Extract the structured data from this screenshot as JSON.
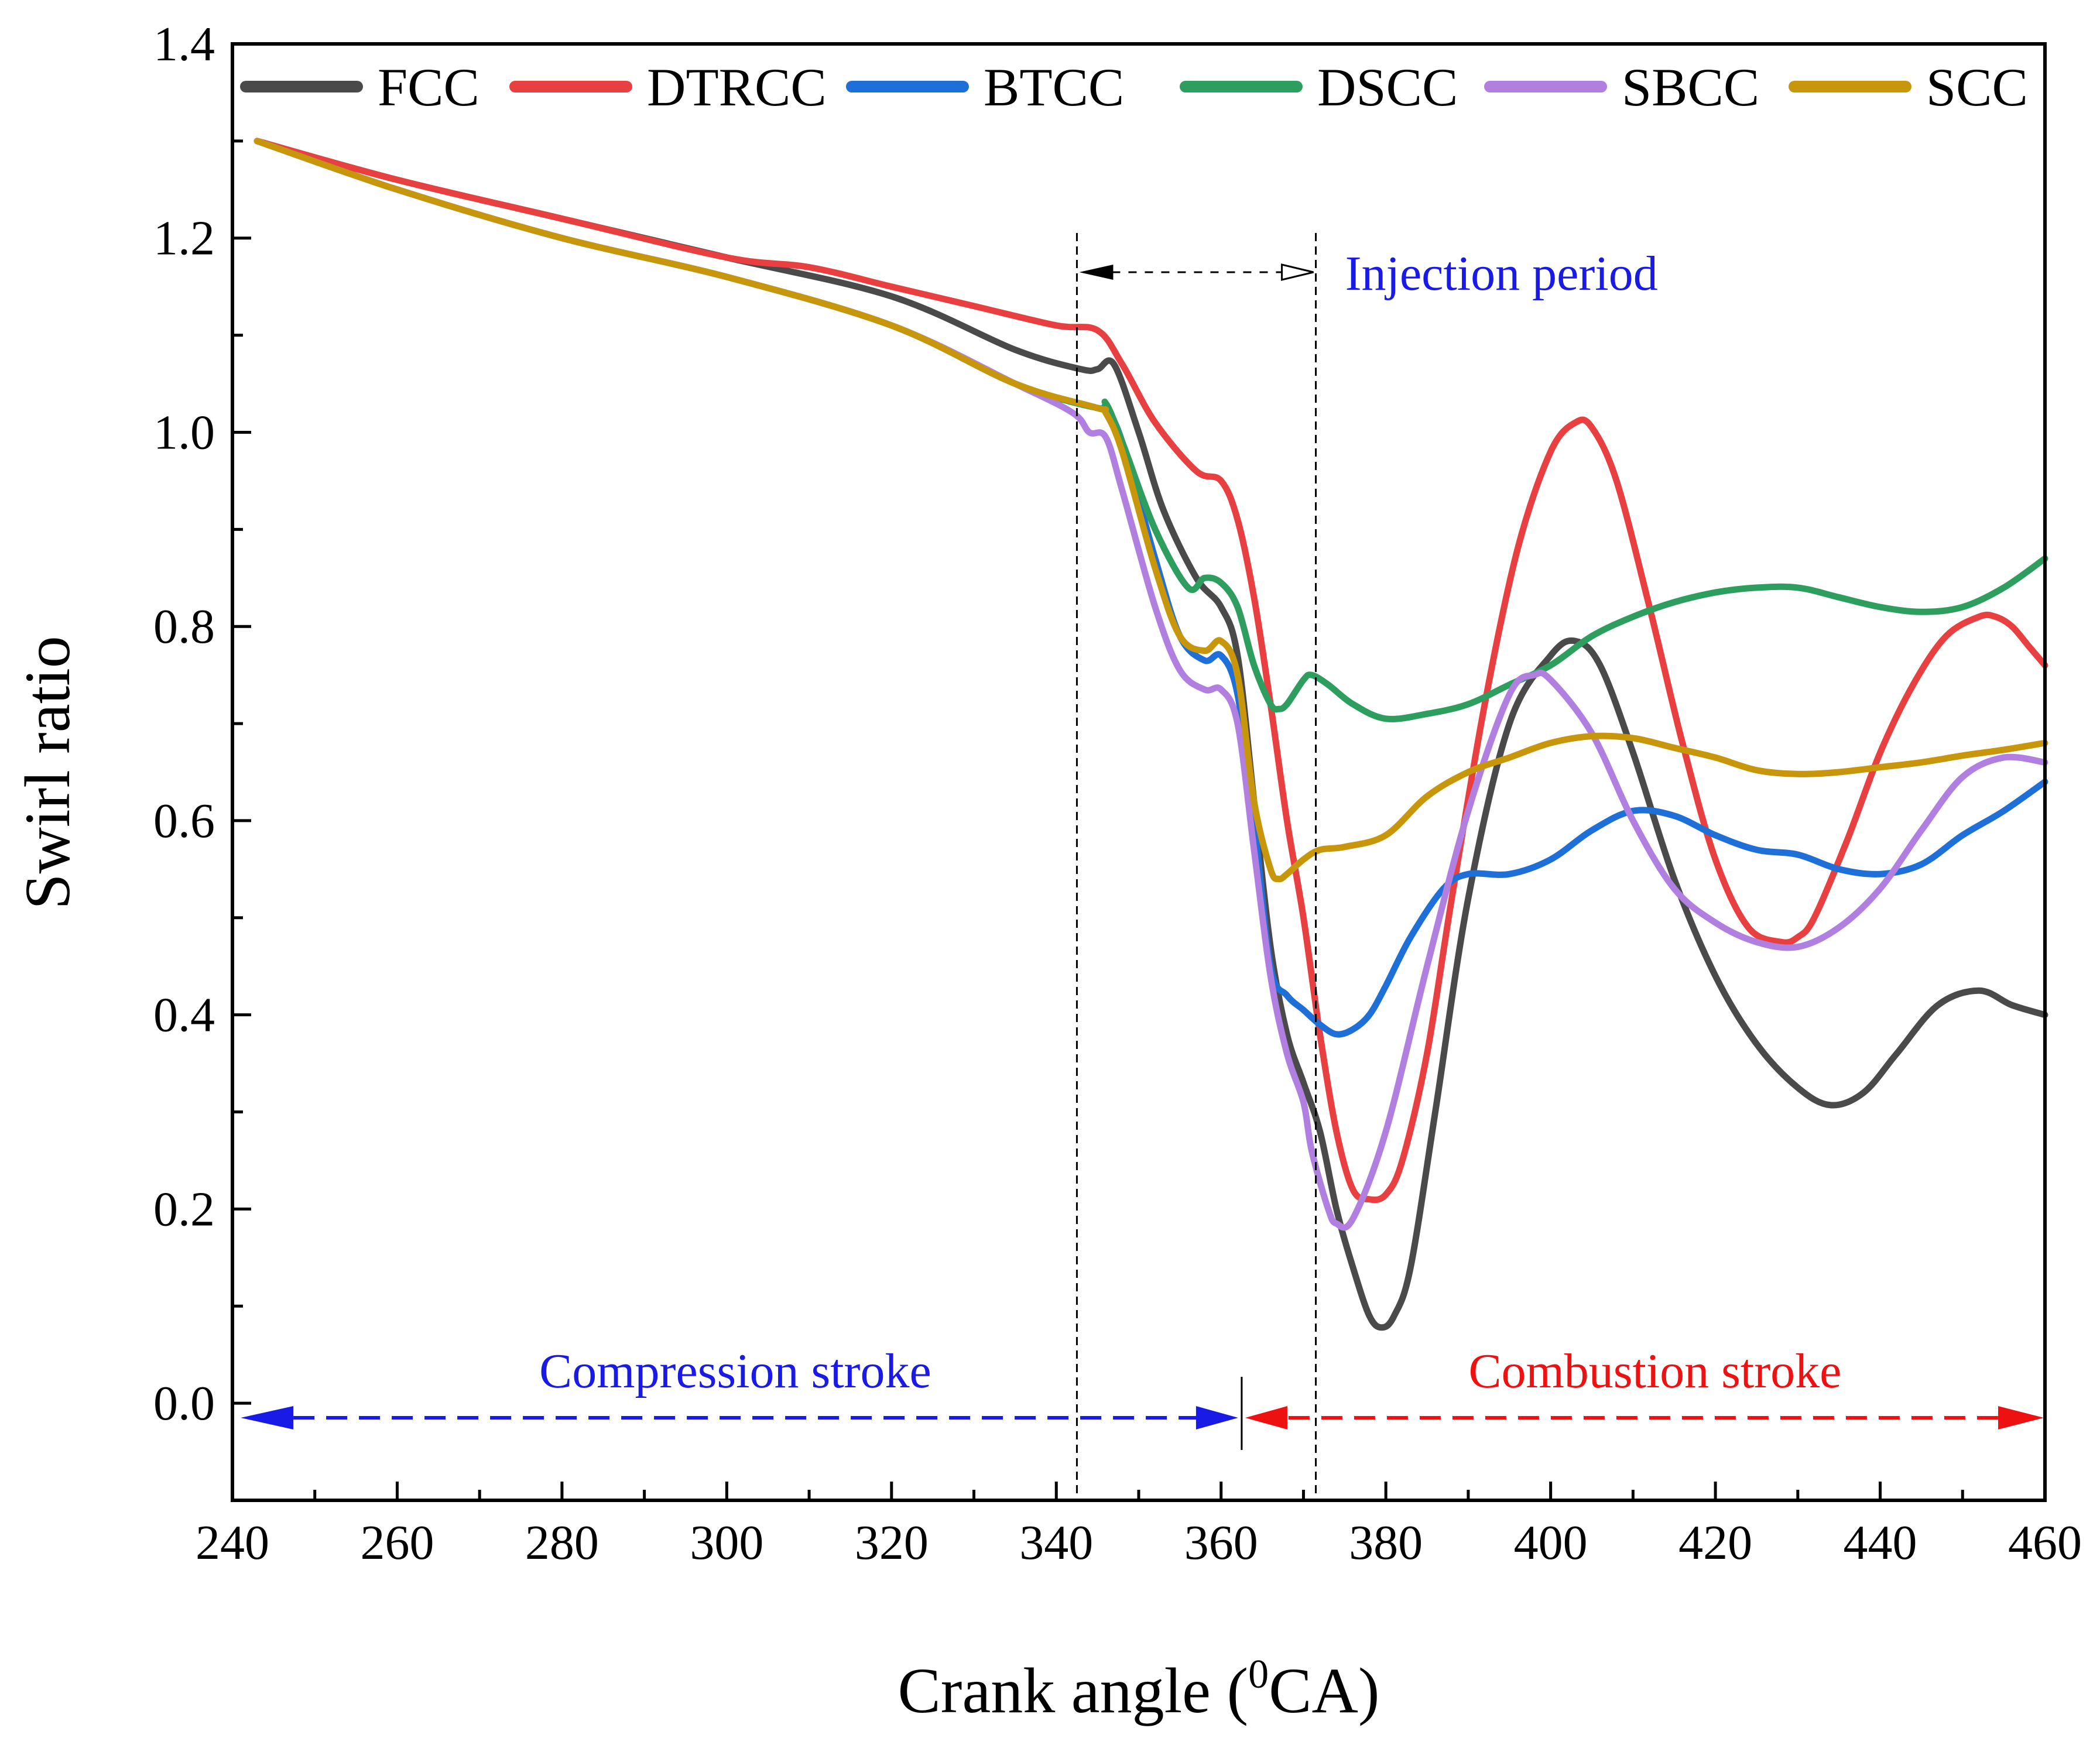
{
  "chart_data": {
    "type": "line",
    "title": "",
    "xlabel": "Crank angle (",
    "xlabel_sup": "0",
    "xlabel_tail": "CA)",
    "ylabel": "Swirl ratio",
    "xlim": [
      240,
      460
    ],
    "ylim": [
      -0.1,
      1.4
    ],
    "xticks": [
      240,
      260,
      280,
      300,
      320,
      340,
      360,
      380,
      400,
      420,
      440,
      460
    ],
    "xtick_labels": [
      "240",
      "260",
      "280",
      "300",
      "320",
      "340",
      "360",
      "380",
      "400",
      "420",
      "440",
      "460"
    ],
    "yticks": [
      0.0,
      0.2,
      0.4,
      0.6,
      0.8,
      1.0,
      1.2,
      1.4
    ],
    "ytick_labels": [
      "0.0",
      "0.2",
      "0.4",
      "0.6",
      "0.8",
      "1.0",
      "1.2",
      "1.4"
    ],
    "grid": false,
    "legend_position": "top",
    "series": [
      {
        "name": "FCC",
        "color": "#4a4a4a",
        "x": [
          243,
          260,
          280,
          300,
          320,
          335,
          343,
          345,
          347,
          350,
          353,
          357,
          360,
          362,
          364,
          366,
          368,
          370,
          372,
          374,
          376,
          378,
          379.5,
          381,
          383,
          386,
          390,
          395,
          400,
          403,
          406,
          410,
          415,
          420,
          425,
          430,
          434,
          438,
          442,
          447,
          452,
          456,
          460
        ],
        "y": [
          1.3,
          1.26,
          1.22,
          1.18,
          1.14,
          1.085,
          1.065,
          1.065,
          1.07,
          1.0,
          0.92,
          0.85,
          0.82,
          0.77,
          0.62,
          0.47,
          0.38,
          0.33,
          0.28,
          0.2,
          0.14,
          0.09,
          0.078,
          0.09,
          0.14,
          0.3,
          0.52,
          0.7,
          0.77,
          0.785,
          0.76,
          0.67,
          0.54,
          0.44,
          0.37,
          0.325,
          0.307,
          0.32,
          0.36,
          0.41,
          0.425,
          0.41,
          0.4
        ]
      },
      {
        "name": "DTRCC",
        "color": "#e84040",
        "x": [
          243,
          260,
          280,
          300,
          310,
          320,
          330,
          340,
          345,
          348,
          352,
          357,
          360,
          362,
          364,
          366,
          368,
          370,
          372,
          374,
          376,
          378,
          380,
          382,
          385,
          388,
          392,
          396,
          400,
          403,
          405,
          408,
          412,
          416,
          420,
          424,
          428,
          430,
          432,
          436,
          440,
          444,
          448,
          452,
          454,
          456,
          458,
          460
        ],
        "y": [
          1.3,
          1.26,
          1.22,
          1.18,
          1.17,
          1.15,
          1.13,
          1.11,
          1.105,
          1.07,
          1.01,
          0.96,
          0.95,
          0.91,
          0.83,
          0.72,
          0.6,
          0.5,
          0.38,
          0.28,
          0.22,
          0.21,
          0.215,
          0.25,
          0.36,
          0.52,
          0.72,
          0.88,
          0.98,
          1.01,
          1.005,
          0.95,
          0.82,
          0.68,
          0.56,
          0.49,
          0.475,
          0.48,
          0.5,
          0.58,
          0.67,
          0.74,
          0.79,
          0.81,
          0.81,
          0.8,
          0.78,
          0.76
        ]
      },
      {
        "name": "BTCC",
        "color": "#1f6fd8",
        "x": [
          243,
          260,
          280,
          300,
          320,
          335,
          345,
          346,
          348,
          352,
          355,
          358,
          360,
          362,
          364,
          366,
          368,
          370,
          372,
          374,
          376,
          378,
          380,
          383,
          387,
          390,
          395,
          400,
          405,
          410,
          415,
          420,
          425,
          430,
          435,
          440,
          445,
          450,
          455,
          460
        ],
        "y": [
          1.3,
          1.25,
          1.2,
          1.16,
          1.11,
          1.05,
          1.025,
          1.025,
          0.99,
          0.87,
          0.79,
          0.765,
          0.77,
          0.73,
          0.6,
          0.45,
          0.42,
          0.405,
          0.39,
          0.38,
          0.385,
          0.4,
          0.43,
          0.48,
          0.53,
          0.545,
          0.545,
          0.56,
          0.59,
          0.61,
          0.605,
          0.585,
          0.57,
          0.565,
          0.55,
          0.545,
          0.555,
          0.585,
          0.61,
          0.64
        ]
      },
      {
        "name": "DSCC",
        "color": "#2e9e5e",
        "x": [
          243,
          260,
          280,
          300,
          320,
          335,
          345,
          346,
          348,
          352,
          356,
          358,
          360,
          362,
          364,
          366,
          367,
          368,
          370,
          371,
          373,
          376,
          380,
          385,
          390,
          395,
          400,
          405,
          410,
          415,
          420,
          425,
          430,
          435,
          440,
          445,
          450,
          455,
          460
        ],
        "y": [
          1.3,
          1.25,
          1.2,
          1.16,
          1.11,
          1.05,
          1.025,
          1.03,
          0.99,
          0.9,
          0.84,
          0.85,
          0.845,
          0.82,
          0.76,
          0.72,
          0.715,
          0.72,
          0.745,
          0.75,
          0.74,
          0.72,
          0.705,
          0.71,
          0.72,
          0.74,
          0.76,
          0.79,
          0.81,
          0.825,
          0.835,
          0.84,
          0.84,
          0.83,
          0.82,
          0.815,
          0.82,
          0.84,
          0.87
        ]
      },
      {
        "name": "SBCC",
        "color": "#b07fe0",
        "x": [
          243,
          260,
          280,
          300,
          320,
          335,
          342,
          344,
          346,
          348,
          352,
          355,
          358,
          360,
          362,
          364,
          366,
          368,
          370,
          371,
          373,
          374,
          376,
          380,
          385,
          390,
          395,
          398,
          400,
          405,
          410,
          415,
          420,
          425,
          430,
          435,
          440,
          445,
          450,
          455,
          460
        ],
        "y": [
          1.3,
          1.25,
          1.2,
          1.16,
          1.11,
          1.05,
          1.02,
          1.0,
          0.995,
          0.94,
          0.82,
          0.755,
          0.735,
          0.735,
          0.7,
          0.57,
          0.44,
          0.36,
          0.31,
          0.26,
          0.2,
          0.185,
          0.19,
          0.28,
          0.45,
          0.61,
          0.73,
          0.75,
          0.745,
          0.69,
          0.6,
          0.53,
          0.495,
          0.475,
          0.47,
          0.49,
          0.53,
          0.59,
          0.645,
          0.665,
          0.66
        ]
      },
      {
        "name": "SCC",
        "color": "#c8960a",
        "x": [
          243,
          260,
          280,
          300,
          320,
          335,
          345,
          346,
          348,
          352,
          355,
          358,
          360,
          362,
          364,
          366,
          367,
          368,
          370,
          372,
          375,
          380,
          385,
          390,
          395,
          400,
          405,
          410,
          415,
          420,
          425,
          430,
          435,
          440,
          445,
          450,
          455,
          460
        ],
        "y": [
          1.3,
          1.25,
          1.2,
          1.16,
          1.11,
          1.05,
          1.025,
          1.02,
          0.98,
          0.86,
          0.79,
          0.775,
          0.785,
          0.75,
          0.62,
          0.55,
          0.54,
          0.545,
          0.56,
          0.57,
          0.573,
          0.585,
          0.625,
          0.65,
          0.665,
          0.68,
          0.687,
          0.685,
          0.675,
          0.665,
          0.652,
          0.648,
          0.65,
          0.655,
          0.66,
          0.667,
          0.673,
          0.68
        ]
      }
    ],
    "annotations": {
      "injection_period": {
        "text": "Injection period",
        "start": 342.5,
        "end": 371.5,
        "color": "#1a1ae6"
      },
      "compression": {
        "text": "Compression stroke",
        "start": 241,
        "end": 362.5,
        "color": "#1a1ae6"
      },
      "combustion": {
        "text": "Combustion stroke",
        "start": 362.5,
        "end": 460,
        "color": "#ee1111"
      },
      "stroke_arrow_y": -0.015
    }
  }
}
